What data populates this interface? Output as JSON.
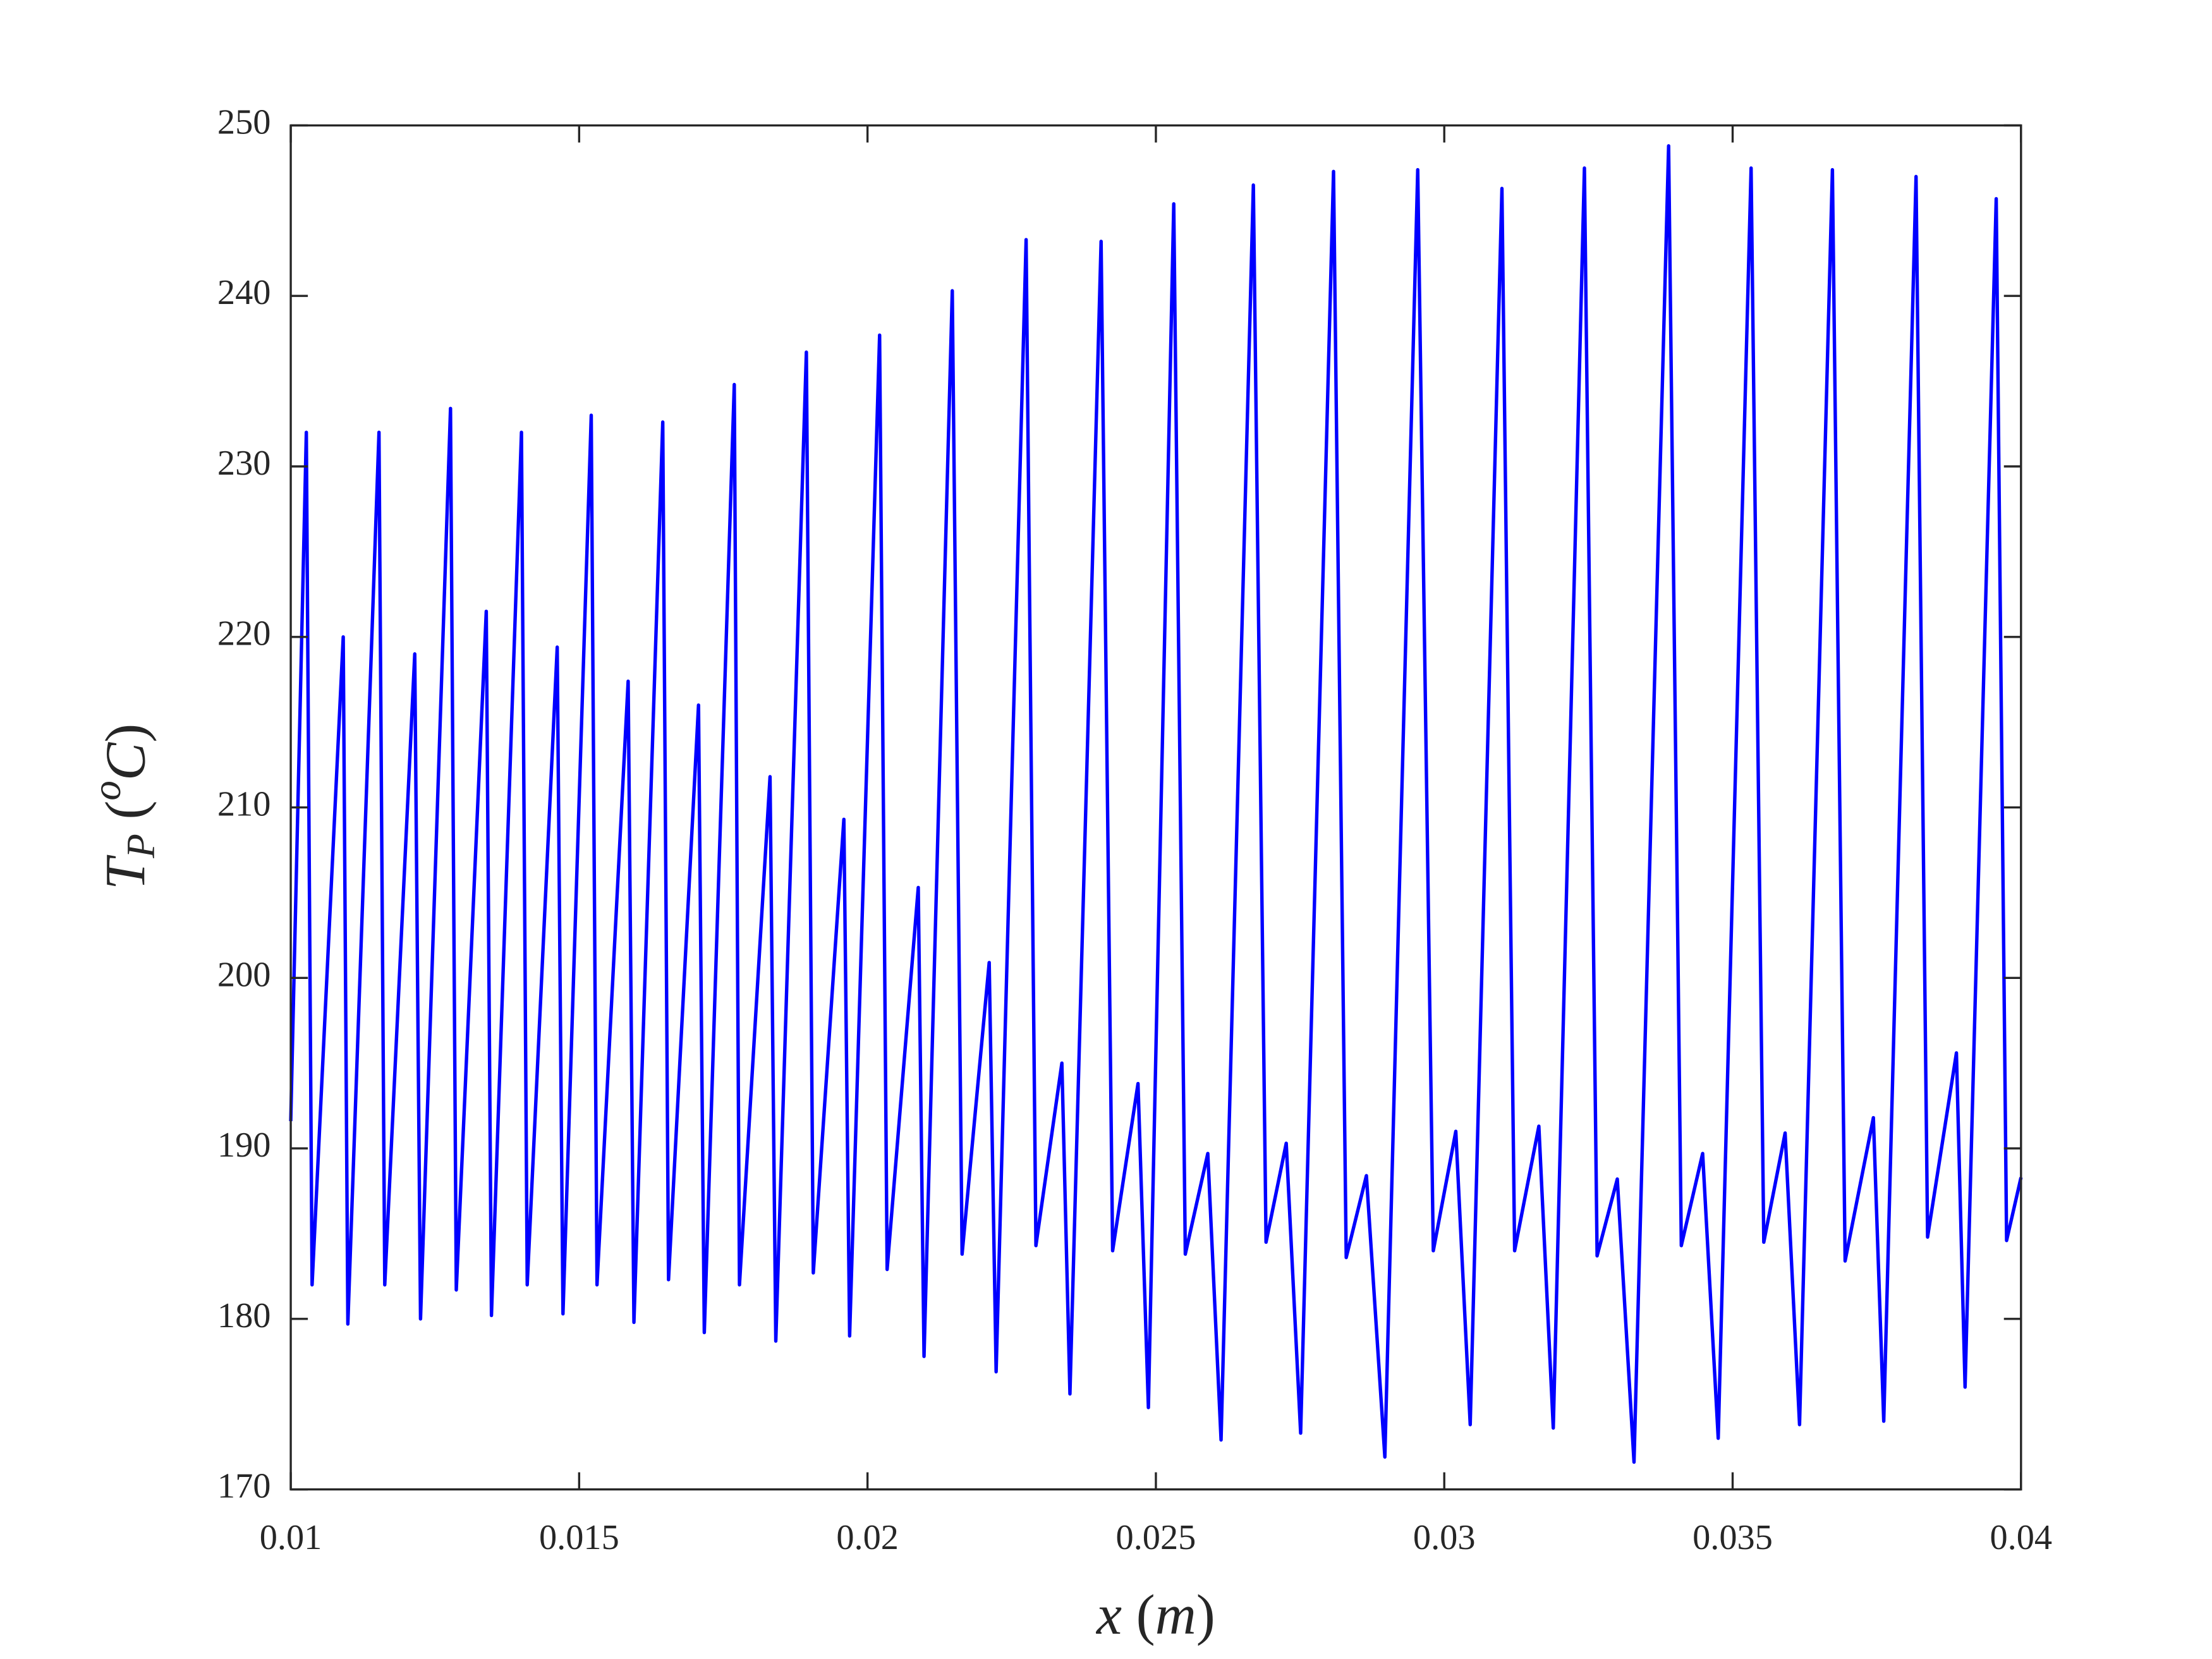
{
  "chart_data": {
    "type": "line",
    "xlabel": [
      "x",
      " (",
      "m",
      ")"
    ],
    "ylabel": [
      "T",
      "P",
      " (",
      "o",
      "C",
      ")"
    ],
    "x": [
      0.01,
      0.01027,
      0.01037,
      0.01091,
      0.01099,
      0.01153,
      0.01163,
      0.01215,
      0.01225,
      0.01277,
      0.01287,
      0.01339,
      0.01348,
      0.014,
      0.0141,
      0.01462,
      0.01472,
      0.01521,
      0.01531,
      0.01585,
      0.01595,
      0.01645,
      0.01655,
      0.01707,
      0.01717,
      0.01769,
      0.01778,
      0.01831,
      0.01841,
      0.01894,
      0.01906,
      0.01959,
      0.01969,
      0.02021,
      0.02034,
      0.02088,
      0.02098,
      0.02147,
      0.02164,
      0.02211,
      0.02223,
      0.02275,
      0.02292,
      0.02337,
      0.02351,
      0.02405,
      0.02425,
      0.02469,
      0.02487,
      0.02531,
      0.02551,
      0.0259,
      0.02613,
      0.02669,
      0.02691,
      0.02726,
      0.02751,
      0.02808,
      0.0283,
      0.02865,
      0.02897,
      0.02954,
      0.02981,
      0.0302,
      0.03045,
      0.031,
      0.03122,
      0.03164,
      0.03189,
      0.03243,
      0.03265,
      0.033,
      0.03329,
      0.03389,
      0.03411,
      0.03448,
      0.03475,
      0.03532,
      0.03554,
      0.03591,
      0.03616,
      0.03673,
      0.03695,
      0.03744,
      0.03762,
      0.03818,
      0.03838,
      0.03888,
      0.03903,
      0.03957,
      0.03975,
      0.04
    ],
    "series": [
      {
        "color": "#0000ff",
        "values": [
          191.6,
          232,
          182,
          220,
          179.7,
          232,
          182,
          219,
          180,
          233.4,
          181.7,
          221.5,
          180.2,
          232,
          182,
          219.4,
          180.3,
          233,
          182,
          217.4,
          179.8,
          232.6,
          182.3,
          216,
          179.2,
          234.8,
          182,
          211.8,
          178.7,
          236.7,
          182.7,
          209.3,
          179,
          237.7,
          182.9,
          205.3,
          177.8,
          240.3,
          183.8,
          200.9,
          176.9,
          243.3,
          184.3,
          195,
          175.6,
          243.2,
          184,
          193.8,
          174.8,
          245.4,
          183.8,
          189.7,
          172.9,
          246.5,
          184.5,
          190.3,
          173.3,
          247.3,
          183.6,
          188.4,
          171.9,
          247.4,
          184,
          191,
          173.8,
          246.3,
          184,
          191.3,
          173.6,
          247.5,
          183.7,
          188.2,
          171.6,
          248.8,
          184.3,
          189.7,
          173,
          247.5,
          184.5,
          190.9,
          173.8,
          247.4,
          183.4,
          191.8,
          174,
          247,
          184.8,
          195.6,
          176,
          245.7,
          184.6,
          188.3
        ]
      }
    ],
    "xlim": [
      0.01,
      0.04
    ],
    "xticks": [
      0.01,
      0.015,
      0.02,
      0.025,
      0.03,
      0.035,
      0.04
    ],
    "ylim": [
      170,
      250
    ],
    "yticks": [
      170,
      180,
      190,
      200,
      210,
      220,
      230,
      240,
      250
    ],
    "grid": false
  }
}
